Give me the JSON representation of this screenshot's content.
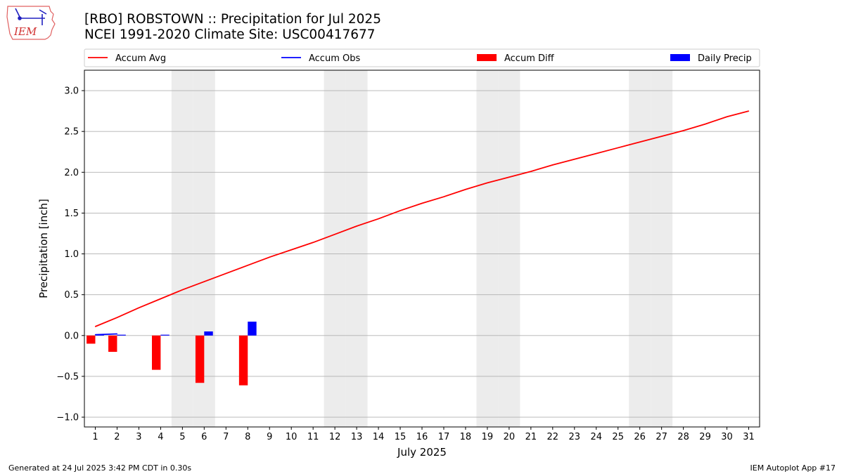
{
  "header": {
    "title_line1": "[RBO] ROBSTOWN :: Precipitation for Jul 2025",
    "title_line2": "NCEI 1991-2020 Climate Site: USC00417677",
    "logo_text": "IEM"
  },
  "footer": {
    "generated": "Generated at 24 Jul 2025 3:42 PM CDT in 0.30s",
    "app": "IEM Autoplot App #17"
  },
  "chart_data": {
    "type": "bar",
    "xlabel": "July 2025",
    "ylabel": "Precipitation [inch]",
    "xlim": [
      0.5,
      31.5
    ],
    "ylim": [
      -1.12,
      3.25
    ],
    "yticks": [
      -1.0,
      -0.5,
      0.0,
      0.5,
      1.0,
      1.5,
      2.0,
      2.5,
      3.0
    ],
    "ytick_labels": [
      "−1.0",
      "−0.5",
      "0.0",
      "0.5",
      "1.0",
      "1.5",
      "2.0",
      "2.5",
      "3.0"
    ],
    "days": [
      1,
      2,
      3,
      4,
      5,
      6,
      7,
      8,
      9,
      10,
      11,
      12,
      13,
      14,
      15,
      16,
      17,
      18,
      19,
      20,
      21,
      22,
      23,
      24,
      25,
      26,
      27,
      28,
      29,
      30,
      31
    ],
    "weekend_days": [
      5,
      6,
      12,
      13,
      19,
      20,
      26,
      27
    ],
    "grid": "horizontal",
    "legend_placement": "top",
    "series": [
      {
        "name": "Accum Avg",
        "kind": "line",
        "color": "#ff0000",
        "values": [
          0.11,
          0.22,
          0.34,
          0.45,
          0.56,
          0.66,
          0.76,
          0.86,
          0.96,
          1.05,
          1.14,
          1.24,
          1.34,
          1.43,
          1.53,
          1.62,
          1.7,
          1.79,
          1.87,
          1.94,
          2.01,
          2.09,
          2.16,
          2.23,
          2.3,
          2.37,
          2.44,
          2.51,
          2.59,
          2.68,
          2.75
        ]
      },
      {
        "name": "Accum Obs",
        "kind": "line",
        "color": "#0000ff",
        "values": [
          0.01,
          0.02,
          null,
          null,
          null,
          null,
          null,
          null,
          null,
          null,
          null,
          null,
          null,
          null,
          null,
          null,
          null,
          null,
          null,
          null,
          null,
          null,
          null,
          null,
          null,
          null,
          null,
          null,
          null,
          null,
          null
        ]
      },
      {
        "name": "Accum Diff",
        "kind": "bar",
        "color": "#ff0000",
        "values": [
          -0.1,
          -0.2,
          null,
          -0.42,
          null,
          -0.58,
          null,
          -0.61,
          null,
          null,
          null,
          null,
          null,
          null,
          null,
          null,
          null,
          null,
          null,
          null,
          null,
          null,
          null,
          null,
          null,
          null,
          null,
          null,
          null,
          null,
          null
        ]
      },
      {
        "name": "Daily Precip",
        "kind": "bar",
        "color": "#0000ff",
        "values": [
          0.01,
          0.01,
          null,
          0.01,
          null,
          0.05,
          null,
          0.17,
          null,
          null,
          null,
          null,
          null,
          null,
          null,
          null,
          null,
          null,
          null,
          null,
          null,
          null,
          null,
          null,
          null,
          null,
          null,
          null,
          null,
          null,
          null
        ]
      }
    ]
  }
}
